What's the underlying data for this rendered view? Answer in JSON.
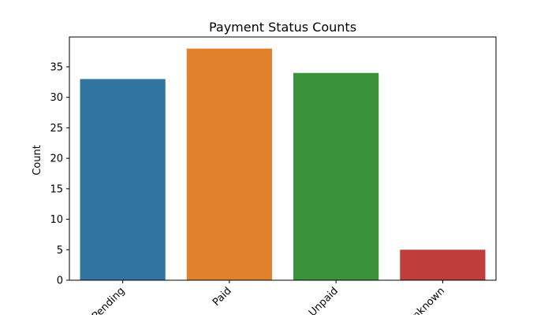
{
  "chart_data": {
    "type": "bar",
    "title": "Payment Status Counts",
    "xlabel": "",
    "ylabel": "Count",
    "categories": [
      "Pending",
      "Paid",
      "Unpaid",
      "Unknown"
    ],
    "values": [
      33,
      38,
      34,
      5
    ],
    "colors": [
      "#3274a1",
      "#e1812c",
      "#3a923a",
      "#c03d3e"
    ],
    "ylim": [
      0,
      39.9
    ],
    "yticks": [
      0,
      5,
      10,
      15,
      20,
      25,
      30,
      35
    ],
    "grid": false,
    "legend": "none"
  }
}
